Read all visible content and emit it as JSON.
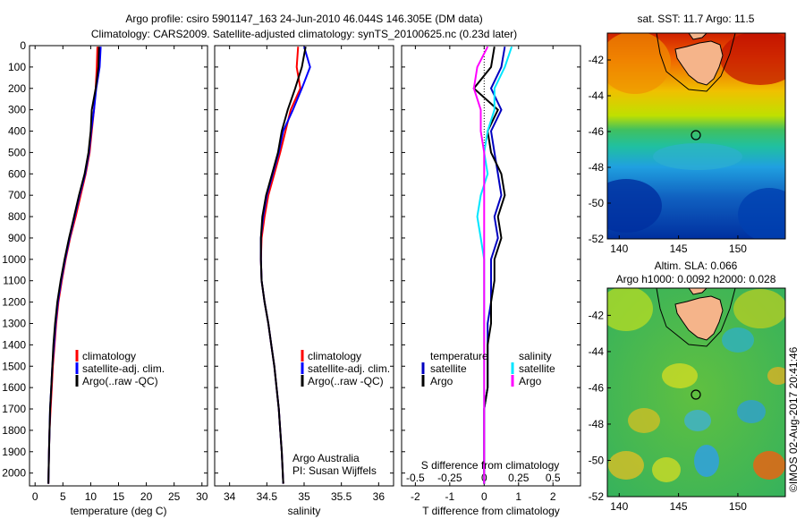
{
  "header": {
    "title_line1": "Argo profile: csiro 5901147_163 24-Jun-2010 46.044S 146.305E (DM data)",
    "title_line2": "Climatology: CARS2009. Satellite-adjusted climatology: synTS_20100625.nc (0.23d later)"
  },
  "colors": {
    "climatology": "#ff0000",
    "satellite": "#0000ff",
    "argo": "#000000",
    "temp_satellite": "#0000c0",
    "sal_satellite": "#00e5ff",
    "sal_argo": "#ff00ff",
    "land": "#f5b48a"
  },
  "chart_data": [
    {
      "type": "line",
      "xlabel": "temperature (deg C)",
      "ylabel": "",
      "xlim": [
        -1,
        31
      ],
      "ylim": [
        2060,
        0
      ],
      "xticks": [
        "0",
        "5",
        "10",
        "15",
        "20",
        "25",
        "30"
      ],
      "yticks": [
        "0",
        "100",
        "200",
        "300",
        "400",
        "500",
        "600",
        "700",
        "800",
        "900",
        "1000",
        "1100",
        "1200",
        "1300",
        "1400",
        "1500",
        "1600",
        "1700",
        "1800",
        "1900",
        "2000"
      ],
      "legend": [
        "climatology",
        "satellite-adj. clim.",
        "Argo(..raw -QC)"
      ],
      "legend_position": "lower-right",
      "series": [
        {
          "name": "climatology",
          "color": "#ff0000",
          "x": [
            11.2,
            11.1,
            10.9,
            10.6,
            10.2,
            9.8,
            9.1,
            8.2,
            7.3,
            6.3,
            5.5,
            4.8,
            4.2,
            3.8,
            3.5,
            3.2,
            3.0,
            2.8,
            2.6,
            2.5,
            2.4
          ],
          "y": [
            5,
            100,
            200,
            300,
            400,
            500,
            600,
            700,
            800,
            900,
            1000,
            1100,
            1200,
            1300,
            1400,
            1500,
            1600,
            1700,
            1800,
            1900,
            2050
          ]
        },
        {
          "name": "satellite-adj. clim.",
          "color": "#0000ff",
          "x": [
            11.8,
            11.6,
            11.0,
            10.6,
            10.1,
            9.7,
            9.0,
            8.0,
            7.1,
            6.2,
            5.4,
            4.7,
            4.1,
            3.7,
            3.4,
            3.1,
            2.9,
            2.7,
            2.6,
            2.5,
            2.4
          ],
          "y": [
            5,
            100,
            200,
            300,
            400,
            500,
            600,
            700,
            800,
            900,
            1000,
            1100,
            1200,
            1300,
            1400,
            1500,
            1600,
            1700,
            1800,
            1900,
            2050
          ]
        },
        {
          "name": "Argo(..raw -QC)",
          "color": "#000000",
          "x": [
            11.5,
            11.4,
            10.9,
            10.2,
            10.0,
            9.6,
            8.9,
            7.9,
            7.0,
            6.1,
            5.3,
            4.6,
            4.0,
            3.6,
            3.3,
            3.1,
            2.9,
            2.7,
            2.6,
            2.5,
            2.4
          ],
          "y": [
            5,
            100,
            200,
            300,
            400,
            500,
            600,
            700,
            800,
            900,
            1000,
            1100,
            1200,
            1300,
            1400,
            1500,
            1600,
            1700,
            1800,
            1900,
            2050
          ]
        }
      ]
    },
    {
      "type": "line",
      "xlabel": "salinity",
      "ylabel": "",
      "xlim": [
        33.8,
        36.2
      ],
      "ylim": [
        2060,
        0
      ],
      "xticks": [
        "34",
        "34.5",
        "35",
        "35.5",
        "36"
      ],
      "legend": [
        "climatology",
        "satellite-adj. clim.",
        "Argo(..raw -QC)"
      ],
      "legend_position": "lower-right",
      "annotations": [
        "Argo Australia",
        "PI: Susan Wijffels"
      ],
      "series": [
        {
          "name": "climatology",
          "color": "#ff0000",
          "x": [
            34.92,
            34.9,
            34.95,
            34.82,
            34.75,
            34.68,
            34.6,
            34.52,
            34.47,
            34.43,
            34.42,
            34.43,
            34.47,
            34.52,
            34.56,
            34.6,
            34.63,
            34.66,
            34.68,
            34.7,
            34.72
          ],
          "y": [
            5,
            100,
            200,
            300,
            400,
            500,
            600,
            700,
            800,
            900,
            1000,
            1100,
            1200,
            1300,
            1400,
            1500,
            1600,
            1700,
            1800,
            1900,
            2050
          ]
        },
        {
          "name": "satellite-adj. clim.",
          "color": "#0000ff",
          "x": [
            35.0,
            35.08,
            34.97,
            34.85,
            34.72,
            34.66,
            34.58,
            34.5,
            34.45,
            34.42,
            34.42,
            34.43,
            34.47,
            34.52,
            34.56,
            34.6,
            34.63,
            34.66,
            34.68,
            34.7,
            34.72
          ],
          "y": [
            5,
            100,
            200,
            300,
            400,
            500,
            600,
            700,
            800,
            900,
            1000,
            1100,
            1200,
            1300,
            1400,
            1500,
            1600,
            1700,
            1800,
            1900,
            2050
          ]
        },
        {
          "name": "Argo(..raw -QC)",
          "color": "#000000",
          "x": [
            35.02,
            34.97,
            34.88,
            34.78,
            34.7,
            34.65,
            34.57,
            34.49,
            34.44,
            34.42,
            34.42,
            34.43,
            34.47,
            34.52,
            34.56,
            34.6,
            34.63,
            34.66,
            34.68,
            34.7,
            34.72
          ],
          "y": [
            5,
            100,
            200,
            300,
            400,
            500,
            600,
            700,
            800,
            900,
            1000,
            1100,
            1200,
            1300,
            1400,
            1500,
            1600,
            1700,
            1800,
            1900,
            2050
          ]
        }
      ]
    },
    {
      "type": "line",
      "xlabel": "T difference from climatology",
      "xlabel2": "S difference from climatology",
      "ylabel": "",
      "xlim": [
        -2.4,
        2.8
      ],
      "ylim": [
        2060,
        0
      ],
      "xticks": [
        "-2",
        "-1",
        "0",
        "1",
        "2"
      ],
      "xticks2": [
        "-0.5",
        "-0.25",
        "0",
        "0.25",
        "0.5"
      ],
      "legend_titles": [
        "temperature",
        "salinity"
      ],
      "legend": [
        "satellite",
        "Argo",
        "satellite",
        "Argo"
      ],
      "legend_position": "lower-right",
      "series": [
        {
          "name": "satellite",
          "color": "#0000c0",
          "x": [
            0.6,
            0.5,
            0.2,
            0.5,
            0.2,
            0.3,
            0.4,
            0.5,
            0.3,
            0.4,
            0.2,
            0.2,
            0.2,
            0.1,
            0.1,
            0.1,
            0.1,
            0.0,
            0.0,
            0.0,
            0.0
          ],
          "y": [
            5,
            100,
            200,
            300,
            400,
            500,
            600,
            700,
            800,
            900,
            1000,
            1100,
            1200,
            1300,
            1400,
            1500,
            1600,
            1700,
            1800,
            1900,
            2050
          ]
        },
        {
          "name": "Argo",
          "color": "#000000",
          "x": [
            0.3,
            0.2,
            -0.3,
            0.4,
            0.1,
            0.2,
            0.5,
            0.6,
            0.4,
            0.5,
            0.3,
            0.3,
            0.2,
            0.2,
            0.1,
            0.1,
            0.1,
            0.0,
            0.0,
            0.0,
            0.0
          ],
          "y": [
            5,
            100,
            200,
            300,
            400,
            500,
            600,
            700,
            800,
            900,
            1000,
            1100,
            1200,
            1300,
            1400,
            1500,
            1600,
            1700,
            1800,
            1900,
            2050
          ]
        },
        {
          "name": "satellite",
          "color": "#00e5ff",
          "x": [
            0.8,
            0.6,
            0.3,
            0.3,
            0.1,
            0.0,
            0.1,
            -0.1,
            -0.2,
            -0.1,
            0.0,
            0.0,
            0.0,
            0.0,
            0.0,
            0.0,
            0.0,
            0.0,
            0.0,
            0.0,
            0.0
          ],
          "y": [
            5,
            100,
            200,
            300,
            400,
            500,
            600,
            700,
            800,
            900,
            1000,
            1100,
            1200,
            1300,
            1400,
            1500,
            1600,
            1700,
            1800,
            1900,
            2050
          ]
        },
        {
          "name": "Argo",
          "color": "#ff00ff",
          "x": [
            0.1,
            -0.2,
            -0.3,
            -0.1,
            -0.1,
            0.0,
            0.0,
            0.0,
            0.0,
            0.0,
            0.0,
            0.0,
            0.0,
            0.0,
            0.0,
            0.0,
            0.0,
            0.0,
            0.0,
            0.0,
            0.0
          ],
          "y": [
            5,
            100,
            200,
            300,
            400,
            500,
            600,
            700,
            800,
            900,
            1000,
            1100,
            1200,
            1300,
            1400,
            1500,
            1600,
            1700,
            1800,
            1900,
            2050
          ]
        }
      ]
    },
    {
      "type": "heatmap",
      "title": "sat. SST: 11.7 Argo: 11.5",
      "xlim": [
        139,
        154
      ],
      "ylim": [
        -52,
        -40.5
      ],
      "xticks": [
        "140",
        "145",
        "150"
      ],
      "yticks": [
        "-42",
        "-44",
        "-46",
        "-48",
        "-50",
        "-52"
      ],
      "marker": {
        "lon": 146.3,
        "lat": -46.0
      }
    },
    {
      "type": "heatmap",
      "title": "Altim. SLA: 0.066",
      "subtitle": "Argo h1000: 0.0092 h2000: 0.028",
      "xlim": [
        139,
        154
      ],
      "ylim": [
        -52,
        -40.5
      ],
      "xticks": [
        "140",
        "145",
        "150"
      ],
      "yticks": [
        "-42",
        "-44",
        "-46",
        "-48",
        "-50",
        "-52"
      ],
      "marker": {
        "lon": 146.3,
        "lat": -46.0
      }
    }
  ],
  "footer": {
    "stamp": "©IMOS 02-Aug-2017 20:41:46"
  }
}
